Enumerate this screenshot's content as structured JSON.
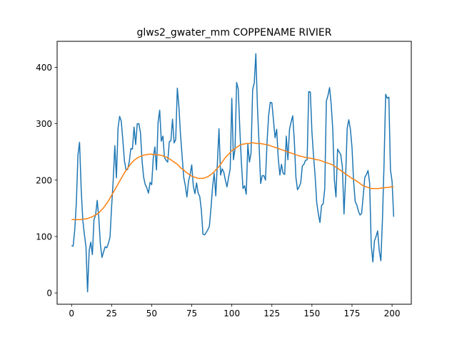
{
  "chart_data": {
    "type": "line",
    "title": "glws2_gwater_mm COPPENAME RIVIER",
    "xlabel": "",
    "ylabel": "",
    "xlim": [
      -9,
      212
    ],
    "ylim": [
      -20,
      446
    ],
    "xticks": [
      0,
      25,
      50,
      75,
      100,
      125,
      150,
      175,
      200
    ],
    "yticks": [
      0,
      100,
      200,
      300,
      400
    ],
    "grid": false,
    "colors": {
      "series_1": "#1f77b4",
      "series_2": "#ff7f0e"
    },
    "series": [
      {
        "values": [
          84,
          83,
          112,
          160,
          245,
          267,
          185,
          130,
          104,
          82,
          2,
          75,
          90,
          68,
          130,
          138,
          164,
          134,
          86,
          63,
          73,
          82,
          80,
          88,
          99,
          153,
          200,
          261,
          204,
          292,
          313,
          305,
          271,
          234,
          218,
          219,
          232,
          256,
          255,
          294,
          263,
          300,
          300,
          284,
          234,
          205,
          192,
          186,
          177,
          196,
          192,
          240,
          259,
          218,
          302,
          324,
          269,
          278,
          240,
          235,
          232,
          268,
          270,
          308,
          266,
          272,
          363,
          330,
          280,
          242,
          205,
          190,
          170,
          198,
          210,
          227,
          189,
          176,
          195,
          177,
          171,
          147,
          104,
          103,
          107,
          112,
          118,
          150,
          188,
          212,
          172,
          230,
          291,
          209,
          220,
          214,
          200,
          188,
          205,
          220,
          345,
          236,
          255,
          373,
          362,
          290,
          230,
          185,
          190,
          175,
          264,
          232,
          248,
          360,
          372,
          424,
          330,
          264,
          194,
          208,
          208,
          200,
          268,
          315,
          338,
          337,
          306,
          275,
          290,
          238,
          209,
          228,
          212,
          210,
          278,
          236,
          290,
          303,
          314,
          270,
          205,
          183,
          188,
          195,
          225,
          228,
          235,
          236,
          357,
          356,
          285,
          243,
          207,
          160,
          140,
          125,
          155,
          158,
          185,
          340,
          350,
          364,
          335,
          290,
          200,
          170,
          255,
          250,
          245,
          223,
          140,
          203,
          292,
          307,
          290,
          258,
          198,
          162,
          156,
          145,
          138,
          141,
          172,
          205,
          210,
          217,
          195,
          85,
          55,
          92,
          100,
          110,
          75,
          57,
          130,
          230,
          352,
          345,
          347,
          218,
          198,
          135
        ],
        "x_start": 0,
        "x_step": 1
      },
      {
        "values": [
          130,
          130,
          130,
          130,
          130,
          130,
          130,
          131,
          131,
          131,
          132,
          133,
          134,
          135,
          137,
          138,
          140,
          142,
          145,
          148,
          151,
          155,
          159,
          163,
          168,
          173,
          178,
          183,
          188,
          193,
          198,
          203,
          208,
          213,
          217,
          221,
          225,
          229,
          232,
          235,
          237,
          239,
          241,
          242,
          243,
          244,
          245,
          245,
          246,
          246,
          246,
          245,
          245,
          245,
          245,
          244,
          244,
          243,
          242,
          241,
          239,
          238,
          236,
          234,
          232,
          230,
          228,
          225,
          222,
          220,
          218,
          215,
          213,
          211,
          209,
          207,
          206,
          205,
          204,
          203,
          203,
          203,
          203,
          204,
          205,
          206,
          208,
          210,
          212,
          215,
          218,
          221,
          224,
          228,
          232,
          236,
          240,
          243,
          246,
          249,
          252,
          254,
          256,
          258,
          260,
          262,
          263,
          264,
          264,
          265,
          265,
          265,
          266,
          266,
          266,
          265,
          265,
          265,
          265,
          264,
          264,
          263,
          263,
          262,
          261,
          260,
          259,
          258,
          257,
          256,
          255,
          254,
          253,
          252,
          251,
          250,
          249,
          248,
          247,
          246,
          245,
          244,
          243,
          242,
          242,
          241,
          240,
          240,
          239,
          239,
          238,
          238,
          237,
          236,
          236,
          235,
          234,
          233,
          232,
          231,
          230,
          229,
          228,
          227,
          225,
          223,
          221,
          219,
          217,
          215,
          213,
          211,
          209,
          207,
          205,
          203,
          201,
          200,
          198,
          196,
          194,
          192,
          190,
          189,
          188,
          187,
          186,
          185,
          185,
          185,
          185,
          185,
          185,
          186,
          186,
          186,
          187,
          187,
          187,
          188,
          188,
          188
        ],
        "x_start": 0,
        "x_step": 1
      }
    ]
  }
}
